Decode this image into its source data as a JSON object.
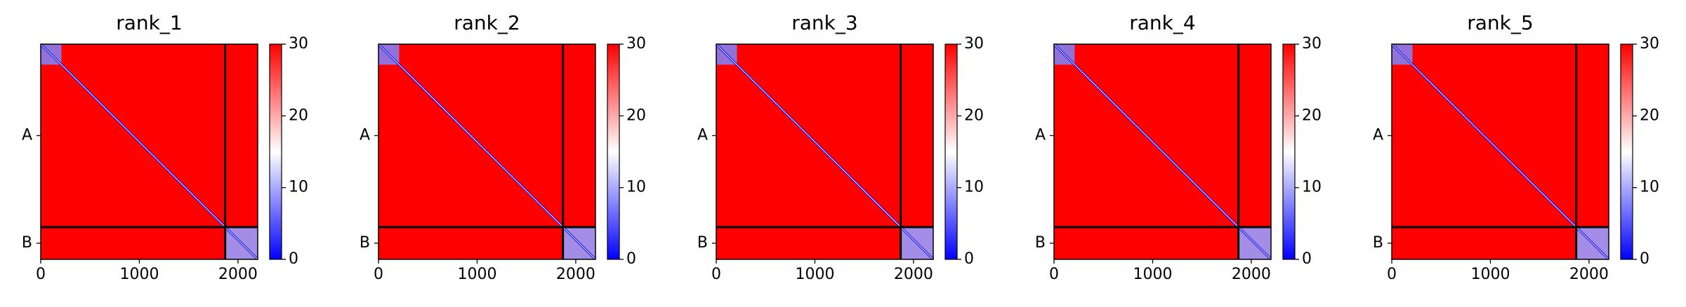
{
  "chart_data": [
    {
      "type": "heatmap",
      "title": "rank_1",
      "xlim": [
        0,
        2200
      ],
      "xticks": [
        0,
        1000,
        2000
      ],
      "ylim": [
        0,
        2200
      ],
      "yticks": [
        {
          "value": 935,
          "label": "A"
        },
        {
          "value": 2035,
          "label": "B"
        }
      ],
      "boundaries": [
        1870
      ],
      "clim": [
        0,
        30
      ],
      "cticks": [
        0,
        10,
        20,
        30
      ],
      "colormap": [
        "#0000ff",
        "#ffffff",
        "#ff0000"
      ]
    },
    {
      "type": "heatmap",
      "title": "rank_2",
      "xlim": [
        0,
        2200
      ],
      "xticks": [
        0,
        1000,
        2000
      ],
      "ylim": [
        0,
        2200
      ],
      "yticks": [
        {
          "value": 935,
          "label": "A"
        },
        {
          "value": 2035,
          "label": "B"
        }
      ],
      "boundaries": [
        1870
      ],
      "clim": [
        0,
        30
      ],
      "cticks": [
        0,
        10,
        20,
        30
      ],
      "colormap": [
        "#0000ff",
        "#ffffff",
        "#ff0000"
      ]
    },
    {
      "type": "heatmap",
      "title": "rank_3",
      "xlim": [
        0,
        2200
      ],
      "xticks": [
        0,
        1000,
        2000
      ],
      "ylim": [
        0,
        2200
      ],
      "yticks": [
        {
          "value": 935,
          "label": "A"
        },
        {
          "value": 2035,
          "label": "B"
        }
      ],
      "boundaries": [
        1870
      ],
      "clim": [
        0,
        30
      ],
      "cticks": [
        0,
        10,
        20,
        30
      ],
      "colormap": [
        "#0000ff",
        "#ffffff",
        "#ff0000"
      ]
    },
    {
      "type": "heatmap",
      "title": "rank_4",
      "xlim": [
        0,
        2200
      ],
      "xticks": [
        0,
        1000,
        2000
      ],
      "ylim": [
        0,
        2200
      ],
      "yticks": [
        {
          "value": 935,
          "label": "A"
        },
        {
          "value": 2035,
          "label": "B"
        }
      ],
      "boundaries": [
        1870
      ],
      "clim": [
        0,
        30
      ],
      "cticks": [
        0,
        10,
        20,
        30
      ],
      "colormap": [
        "#0000ff",
        "#ffffff",
        "#ff0000"
      ]
    },
    {
      "type": "heatmap",
      "title": "rank_5",
      "xlim": [
        0,
        2200
      ],
      "xticks": [
        0,
        1000,
        2000
      ],
      "ylim": [
        0,
        2200
      ],
      "yticks": [
        {
          "value": 935,
          "label": "A"
        },
        {
          "value": 2035,
          "label": "B"
        }
      ],
      "boundaries": [
        1870
      ],
      "clim": [
        0,
        30
      ],
      "cticks": [
        0,
        10,
        20,
        30
      ],
      "colormap": [
        "#0000ff",
        "#ffffff",
        "#ff0000"
      ]
    }
  ]
}
